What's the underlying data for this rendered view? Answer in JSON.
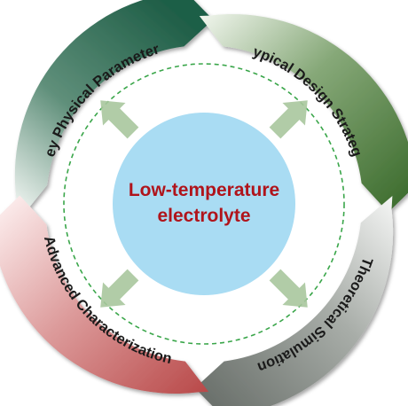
{
  "center": {
    "line1": "Low-temperature",
    "line2": "electrolyte",
    "fill_color": "#a9dcf3",
    "text_color": "#b0141b"
  },
  "segments": [
    {
      "label": "Key Physical Parameters",
      "color": "#2f6b54"
    },
    {
      "label": "Typical Design Strategy",
      "color": "#4f7d3e"
    },
    {
      "label": "Theoretical Simulation",
      "color": "#7a807b"
    },
    {
      "label": "Advanced Characterization",
      "color": "#c45a5a"
    }
  ],
  "arrows": {
    "color": "#a9c79d",
    "directions": [
      "upper-left",
      "upper-right",
      "lower-left",
      "lower-right"
    ]
  },
  "dashed_ring": {
    "color": "#3aa64a"
  }
}
